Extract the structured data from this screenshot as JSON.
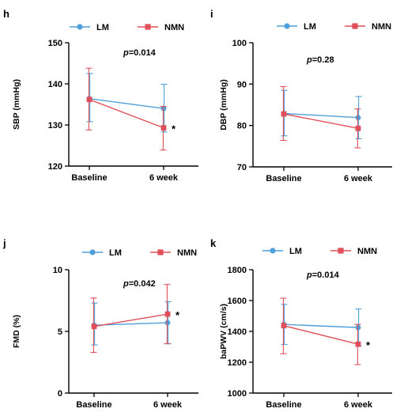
{
  "colors": {
    "LM": "#4f9fd8",
    "NMN": "#e0505a",
    "axis": "#000000"
  },
  "chart_data": [
    {
      "panel": "h",
      "type": "line",
      "legend": {
        "entries": [
          "LM",
          "NMN"
        ],
        "placement": "top"
      },
      "categories": [
        "Baseline",
        "6 week"
      ],
      "ylabel": "SBP (mmHg)",
      "ylim": [
        120,
        150
      ],
      "yticks": [
        120,
        130,
        140,
        150
      ],
      "p_prefix": "p",
      "p_value": "=0.014",
      "significance": "*",
      "series": [
        {
          "name": "LM",
          "values": [
            136.4,
            134.0
          ],
          "err_high": [
            142.5,
            139.9
          ],
          "err_low": [
            130.8,
            128.3
          ]
        },
        {
          "name": "NMN",
          "values": [
            136.2,
            129.3
          ],
          "err_high": [
            143.8,
            134.5
          ],
          "err_low": [
            128.8,
            123.9
          ]
        }
      ]
    },
    {
      "panel": "i",
      "type": "line",
      "legend": {
        "entries": [
          "LM",
          "NMN"
        ],
        "placement": "top"
      },
      "categories": [
        "Baseline",
        "6 week"
      ],
      "ylabel": "DBP (mmHg)",
      "ylim": [
        70,
        100
      ],
      "yticks": [
        70,
        80,
        90,
        100
      ],
      "p_prefix": "p",
      "p_value": "=0.28",
      "significance": "",
      "series": [
        {
          "name": "LM",
          "values": [
            82.9,
            81.9
          ],
          "err_high": [
            88.5,
            87.0
          ],
          "err_low": [
            77.5,
            76.8
          ]
        },
        {
          "name": "NMN",
          "values": [
            82.8,
            79.3
          ],
          "err_high": [
            89.4,
            84.0
          ],
          "err_low": [
            76.4,
            74.6
          ]
        }
      ]
    },
    {
      "panel": "j",
      "type": "line",
      "legend": {
        "entries": [
          "LM",
          "NMN"
        ],
        "placement": "top"
      },
      "categories": [
        "Baseline",
        "6 week"
      ],
      "ylabel": "FMD (%)",
      "ylim": [
        0,
        10
      ],
      "yticks": [
        0,
        5,
        10
      ],
      "p_prefix": "p",
      "p_value": "=0.042",
      "significance": "*",
      "series": [
        {
          "name": "LM",
          "values": [
            5.5,
            5.7
          ],
          "err_high": [
            7.3,
            7.4
          ],
          "err_low": [
            3.9,
            4.0
          ]
        },
        {
          "name": "NMN",
          "values": [
            5.4,
            6.4
          ],
          "err_high": [
            7.7,
            8.8
          ],
          "err_low": [
            3.3,
            4.0
          ]
        }
      ]
    },
    {
      "panel": "k",
      "type": "line",
      "legend": {
        "entries": [
          "LM",
          "NMN"
        ],
        "placement": "top"
      },
      "categories": [
        "Baseline",
        "6 week"
      ],
      "ylabel": "baPWV (cm/s)",
      "ylim": [
        1000,
        1800
      ],
      "yticks": [
        1000,
        1200,
        1400,
        1600,
        1800
      ],
      "p_prefix": "p",
      "p_value": "=0.014",
      "significance": "*",
      "series": [
        {
          "name": "LM",
          "values": [
            1445,
            1425
          ],
          "err_high": [
            1575,
            1545
          ],
          "err_low": [
            1315,
            1305
          ]
        },
        {
          "name": "NMN",
          "values": [
            1437,
            1317
          ],
          "err_high": [
            1615,
            1445
          ],
          "err_low": [
            1255,
            1185
          ]
        }
      ]
    }
  ]
}
